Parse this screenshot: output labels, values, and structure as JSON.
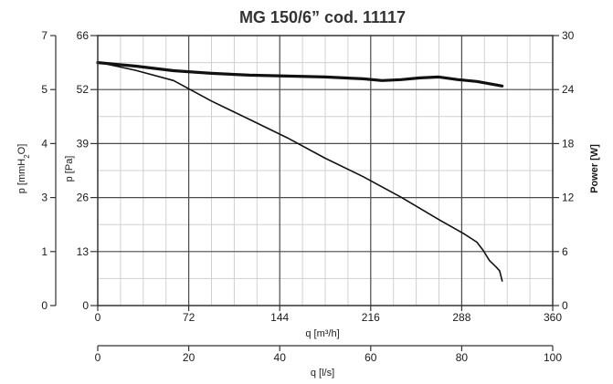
{
  "chart_data": {
    "type": "line",
    "title": "MG 150/6” cod. 11117",
    "x_axis": {
      "label": "q [m³/h]",
      "range": [
        0,
        360
      ],
      "ticks": [
        "0",
        "72",
        "144",
        "216",
        "288",
        "360"
      ]
    },
    "x2_axis": {
      "label": "q [l/s]",
      "range": [
        0,
        100
      ],
      "ticks": [
        "0",
        "20",
        "40",
        "60",
        "80",
        "100"
      ]
    },
    "y_axis_mmh2o": {
      "label_main": "p [mmH",
      "label_sub": "2",
      "label_end": "O]",
      "ticks": [
        "0",
        "1",
        "3",
        "4",
        "5",
        "7"
      ]
    },
    "y_axis_pa": {
      "label": "p [Pa]",
      "range": [
        0,
        66
      ],
      "ticks": [
        "0",
        "13",
        "26",
        "39",
        "52",
        "66"
      ]
    },
    "y_axis_power": {
      "label": "Power [W]",
      "range": [
        0,
        30
      ],
      "ticks": [
        "0",
        "6",
        "12",
        "18",
        "24",
        "30"
      ]
    },
    "grid": true,
    "series": [
      {
        "axis": "pressure_pa",
        "style": "thin",
        "x": [
          0,
          30,
          60,
          90,
          120,
          150,
          180,
          210,
          240,
          270,
          290,
          300,
          305,
          310,
          315,
          318,
          320
        ],
        "y": [
          59.5,
          57.5,
          55,
          50,
          45.5,
          41,
          36,
          31.5,
          26.5,
          21,
          17.5,
          15.5,
          13.5,
          11,
          9.5,
          8.5,
          6.0
        ]
      },
      {
        "axis": "power_w",
        "style": "bold",
        "x": [
          0,
          30,
          60,
          90,
          120,
          150,
          180,
          210,
          225,
          240,
          255,
          270,
          285,
          300,
          320
        ],
        "y": [
          27.0,
          26.6,
          26.1,
          25.8,
          25.6,
          25.5,
          25.4,
          25.2,
          25.0,
          25.1,
          25.3,
          25.4,
          25.1,
          24.9,
          24.4
        ]
      }
    ]
  }
}
